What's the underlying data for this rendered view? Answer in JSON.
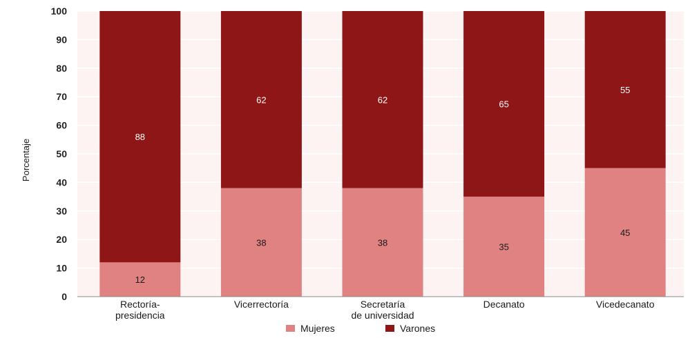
{
  "chart_data": {
    "type": "bar",
    "stacked": true,
    "ylabel": "Porcentaje",
    "xlabel": "",
    "ylim": [
      0,
      100
    ],
    "yticks": [
      0,
      10,
      20,
      30,
      40,
      50,
      60,
      70,
      80,
      90,
      100
    ],
    "categories": [
      [
        "Rectoría-",
        "presidencia"
      ],
      [
        "Vicerrectoría"
      ],
      [
        "Secretaría",
        "de universidad"
      ],
      [
        "Decanato"
      ],
      [
        "Vicedecanato"
      ]
    ],
    "series": [
      {
        "name": "Mujeres",
        "values": [
          12,
          38,
          38,
          35,
          45
        ],
        "color": "#e08282"
      },
      {
        "name": "Varones",
        "values": [
          88,
          62,
          62,
          65,
          55
        ],
        "color": "#8e1616"
      }
    ],
    "grid": true,
    "legend_position": "bottom"
  },
  "colors": {
    "background": "#fdf3f3",
    "grid": "#ffffff",
    "axis": "#222222"
  }
}
